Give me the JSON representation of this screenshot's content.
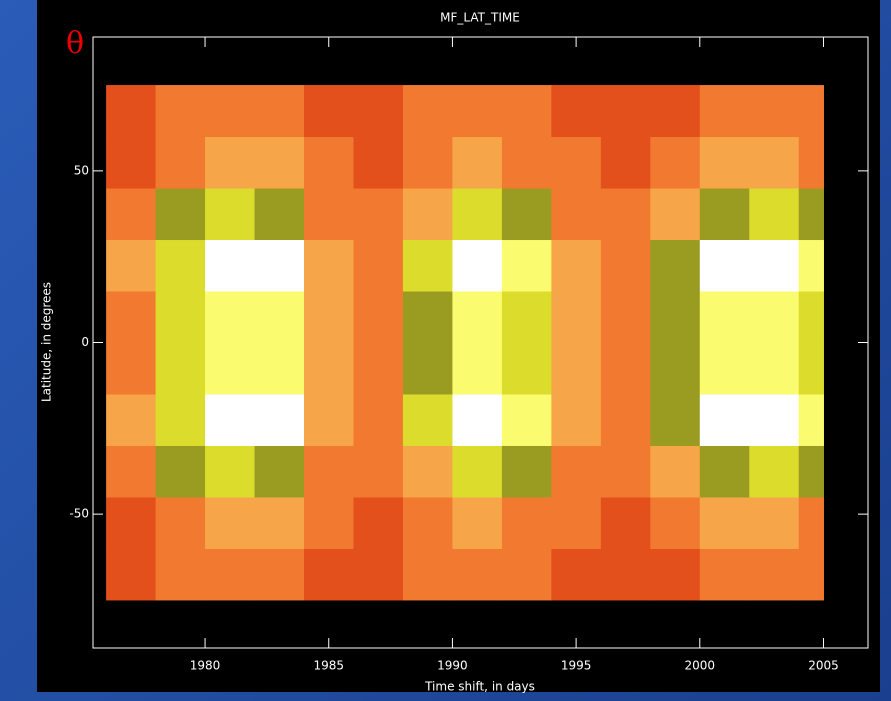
{
  "chart_data": {
    "type": "heatmap",
    "title": "MF_LAT_TIME",
    "annotation": "θ",
    "x_label": "Time shift, in days",
    "y_label": "Latitude, in degrees",
    "x_edges": [
      1976,
      1978,
      1980,
      1982,
      1984,
      1986,
      1988,
      1990,
      1992,
      1994,
      1996,
      1998,
      2000,
      2002,
      2004,
      2005
    ],
    "y_edges": [
      -75,
      -60,
      -45,
      -30,
      -15,
      0,
      15,
      30,
      45,
      60,
      75
    ],
    "values": [
      [
        40,
        55,
        65,
        60,
        45,
        35,
        50,
        65,
        55,
        45,
        35,
        45,
        60,
        65,
        55
      ],
      [
        45,
        65,
        80,
        75,
        50,
        40,
        60,
        80,
        70,
        50,
        40,
        55,
        75,
        80,
        70
      ],
      [
        60,
        100,
        130,
        120,
        70,
        50,
        90,
        130,
        110,
        70,
        50,
        80,
        120,
        130,
        110
      ],
      [
        80,
        145,
        190,
        175,
        95,
        60,
        125,
        190,
        160,
        95,
        60,
        110,
        175,
        190,
        160
      ],
      [
        70,
        125,
        165,
        150,
        85,
        55,
        110,
        165,
        140,
        85,
        55,
        100,
        150,
        165,
        140
      ],
      [
        70,
        125,
        165,
        150,
        85,
        55,
        110,
        165,
        140,
        85,
        55,
        100,
        150,
        165,
        140
      ],
      [
        80,
        145,
        190,
        175,
        95,
        60,
        125,
        190,
        160,
        95,
        60,
        110,
        175,
        190,
        160
      ],
      [
        60,
        100,
        130,
        120,
        70,
        50,
        90,
        130,
        110,
        70,
        50,
        80,
        120,
        130,
        110
      ],
      [
        45,
        65,
        80,
        75,
        50,
        40,
        60,
        80,
        70,
        50,
        40,
        55,
        75,
        80,
        70
      ],
      [
        40,
        55,
        65,
        60,
        45,
        35,
        50,
        65,
        55,
        45,
        35,
        45,
        60,
        65,
        55
      ]
    ],
    "levels": [
      0,
      50,
      75,
      100,
      125,
      150,
      175
    ],
    "level_colors": [
      "#e4501c",
      "#f27a30",
      "#f6a648",
      "#9a9c22",
      "#dcdc2c",
      "#fbfb70",
      "#ffffff"
    ],
    "xlim": [
      1975.47,
      2006.8
    ],
    "ylim": [
      -89,
      89
    ],
    "xticks": [
      1980,
      1985,
      1990,
      1995,
      2000,
      2005
    ],
    "yticks": [
      -50,
      0,
      50
    ],
    "grid": false
  }
}
